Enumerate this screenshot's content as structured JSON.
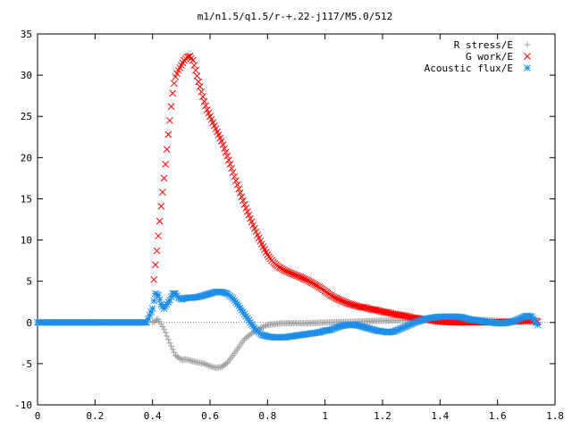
{
  "chart_data": {
    "type": "scatter",
    "title": "m1/n1.5/q1.5/r-+.22-j117/M5.0/512",
    "xlabel": "",
    "ylabel": "",
    "xlim": [
      0,
      1.8
    ],
    "ylim": [
      -10,
      35
    ],
    "x_ticks": [
      "0",
      "0.2",
      "0.4",
      "0.6",
      "0.8",
      "1",
      "1.2",
      "1.4",
      "1.6",
      "1.8"
    ],
    "y_ticks": [
      "-10",
      "-5",
      "0",
      "5",
      "10",
      "15",
      "20",
      "25",
      "30",
      "35"
    ],
    "legend_position": "top-right",
    "grid": false,
    "series": [
      {
        "name": "R stress/E",
        "marker": "plus",
        "color": "#a0a0a0",
        "points": [
          [
            0.4,
            0.0
          ],
          [
            0.42,
            0.4
          ],
          [
            0.44,
            -0.8
          ],
          [
            0.46,
            -2.5
          ],
          [
            0.48,
            -4.0
          ],
          [
            0.5,
            -4.5
          ],
          [
            0.52,
            -4.5
          ],
          [
            0.55,
            -4.8
          ],
          [
            0.58,
            -5.0
          ],
          [
            0.6,
            -5.3
          ],
          [
            0.62,
            -5.5
          ],
          [
            0.64,
            -5.4
          ],
          [
            0.66,
            -4.9
          ],
          [
            0.68,
            -4.0
          ],
          [
            0.7,
            -3.0
          ],
          [
            0.72,
            -2.0
          ],
          [
            0.75,
            -1.2
          ],
          [
            0.78,
            -0.6
          ],
          [
            0.8,
            -0.3
          ],
          [
            0.85,
            -0.1
          ],
          [
            0.9,
            -0.1
          ],
          [
            0.95,
            -0.1
          ],
          [
            1.0,
            0.0
          ],
          [
            1.05,
            0.05
          ],
          [
            1.1,
            0.1
          ],
          [
            1.15,
            0.15
          ],
          [
            1.2,
            0.2
          ],
          [
            1.25,
            0.25
          ],
          [
            1.3,
            0.3
          ],
          [
            1.35,
            0.35
          ],
          [
            1.4,
            0.4
          ],
          [
            1.45,
            0.4
          ],
          [
            1.5,
            0.35
          ],
          [
            1.55,
            0.3
          ],
          [
            1.6,
            0.2
          ],
          [
            1.65,
            0.1
          ],
          [
            1.7,
            0.1
          ],
          [
            1.73,
            0.0
          ]
        ]
      },
      {
        "name": "G work/E",
        "marker": "cross",
        "color": "#ff0000",
        "points": [
          [
            0.405,
            5.2
          ],
          [
            0.41,
            7.0
          ],
          [
            0.415,
            8.7
          ],
          [
            0.42,
            10.5
          ],
          [
            0.425,
            12.3
          ],
          [
            0.43,
            14.1
          ],
          [
            0.435,
            15.8
          ],
          [
            0.44,
            17.5
          ],
          [
            0.445,
            19.2
          ],
          [
            0.45,
            21.0
          ],
          [
            0.455,
            22.8
          ],
          [
            0.46,
            24.5
          ],
          [
            0.465,
            26.2
          ],
          [
            0.47,
            27.8
          ],
          [
            0.475,
            29.0
          ],
          [
            0.48,
            29.8
          ],
          [
            0.49,
            30.6
          ],
          [
            0.5,
            31.2
          ],
          [
            0.51,
            31.8
          ],
          [
            0.52,
            32.2
          ],
          [
            0.53,
            32.3
          ],
          [
            0.54,
            31.8
          ],
          [
            0.55,
            30.6
          ],
          [
            0.56,
            29.2
          ],
          [
            0.57,
            28.0
          ],
          [
            0.58,
            26.8
          ],
          [
            0.59,
            25.8
          ],
          [
            0.6,
            25.0
          ],
          [
            0.62,
            23.5
          ],
          [
            0.64,
            22.0
          ],
          [
            0.66,
            20.2
          ],
          [
            0.68,
            18.2
          ],
          [
            0.7,
            16.2
          ],
          [
            0.72,
            14.3
          ],
          [
            0.74,
            12.6
          ],
          [
            0.76,
            11.0
          ],
          [
            0.78,
            9.5
          ],
          [
            0.8,
            8.2
          ],
          [
            0.82,
            7.3
          ],
          [
            0.84,
            6.7
          ],
          [
            0.86,
            6.3
          ],
          [
            0.88,
            6.0
          ],
          [
            0.9,
            5.7
          ],
          [
            0.92,
            5.4
          ],
          [
            0.94,
            5.1
          ],
          [
            0.96,
            4.7
          ],
          [
            0.98,
            4.3
          ],
          [
            1.0,
            3.8
          ],
          [
            1.02,
            3.3
          ],
          [
            1.04,
            2.9
          ],
          [
            1.06,
            2.6
          ],
          [
            1.08,
            2.3
          ],
          [
            1.1,
            2.1
          ],
          [
            1.12,
            1.9
          ],
          [
            1.14,
            1.8
          ],
          [
            1.16,
            1.6
          ],
          [
            1.18,
            1.5
          ],
          [
            1.2,
            1.3
          ],
          [
            1.22,
            1.2
          ],
          [
            1.24,
            1.0
          ],
          [
            1.26,
            0.9
          ],
          [
            1.28,
            0.8
          ],
          [
            1.3,
            0.6
          ],
          [
            1.32,
            0.5
          ],
          [
            1.34,
            0.4
          ],
          [
            1.36,
            0.3
          ],
          [
            1.38,
            0.2
          ],
          [
            1.4,
            0.1
          ],
          [
            1.45,
            0.0
          ],
          [
            1.5,
            0.0
          ],
          [
            1.55,
            0.0
          ],
          [
            1.6,
            0.05
          ],
          [
            1.65,
            0.1
          ],
          [
            1.7,
            0.2
          ],
          [
            1.73,
            0.2
          ],
          [
            1.74,
            0.1
          ]
        ]
      },
      {
        "name": "Acoustic flux/E",
        "marker": "star",
        "color": "#1e8ee8",
        "points": [
          [
            0.0,
            0.0
          ],
          [
            0.05,
            0.0
          ],
          [
            0.1,
            0.0
          ],
          [
            0.15,
            0.0
          ],
          [
            0.2,
            0.0
          ],
          [
            0.25,
            0.0
          ],
          [
            0.3,
            0.0
          ],
          [
            0.35,
            0.0
          ],
          [
            0.38,
            0.0
          ],
          [
            0.4,
            1.7
          ],
          [
            0.41,
            3.5
          ],
          [
            0.42,
            3.3
          ],
          [
            0.43,
            2.2
          ],
          [
            0.44,
            1.7
          ],
          [
            0.45,
            2.2
          ],
          [
            0.46,
            2.7
          ],
          [
            0.47,
            3.5
          ],
          [
            0.48,
            3.5
          ],
          [
            0.49,
            3.0
          ],
          [
            0.5,
            2.8
          ],
          [
            0.52,
            3.0
          ],
          [
            0.54,
            3.0
          ],
          [
            0.56,
            3.1
          ],
          [
            0.58,
            3.3
          ],
          [
            0.6,
            3.5
          ],
          [
            0.62,
            3.7
          ],
          [
            0.64,
            3.7
          ],
          [
            0.66,
            3.5
          ],
          [
            0.68,
            2.9
          ],
          [
            0.7,
            2.0
          ],
          [
            0.72,
            1.0
          ],
          [
            0.74,
            0.0
          ],
          [
            0.76,
            -0.9
          ],
          [
            0.78,
            -1.5
          ],
          [
            0.8,
            -1.7
          ],
          [
            0.82,
            -1.8
          ],
          [
            0.84,
            -1.8
          ],
          [
            0.86,
            -1.8
          ],
          [
            0.88,
            -1.7
          ],
          [
            0.9,
            -1.6
          ],
          [
            0.92,
            -1.5
          ],
          [
            0.94,
            -1.4
          ],
          [
            0.96,
            -1.3
          ],
          [
            0.98,
            -1.2
          ],
          [
            1.0,
            -1.0
          ],
          [
            1.02,
            -0.9
          ],
          [
            1.04,
            -0.6
          ],
          [
            1.06,
            -0.4
          ],
          [
            1.08,
            -0.3
          ],
          [
            1.1,
            -0.3
          ],
          [
            1.12,
            -0.4
          ],
          [
            1.14,
            -0.6
          ],
          [
            1.16,
            -0.8
          ],
          [
            1.18,
            -1.0
          ],
          [
            1.2,
            -1.1
          ],
          [
            1.22,
            -1.2
          ],
          [
            1.24,
            -1.1
          ],
          [
            1.26,
            -0.8
          ],
          [
            1.28,
            -0.5
          ],
          [
            1.3,
            -0.2
          ],
          [
            1.32,
            0.1
          ],
          [
            1.34,
            0.3
          ],
          [
            1.36,
            0.5
          ],
          [
            1.38,
            0.6
          ],
          [
            1.4,
            0.7
          ],
          [
            1.42,
            0.7
          ],
          [
            1.44,
            0.7
          ],
          [
            1.46,
            0.7
          ],
          [
            1.48,
            0.6
          ],
          [
            1.5,
            0.4
          ],
          [
            1.52,
            0.3
          ],
          [
            1.54,
            0.2
          ],
          [
            1.56,
            0.1
          ],
          [
            1.58,
            0.0
          ],
          [
            1.6,
            -0.1
          ],
          [
            1.62,
            -0.1
          ],
          [
            1.64,
            0.0
          ],
          [
            1.66,
            0.2
          ],
          [
            1.68,
            0.5
          ],
          [
            1.7,
            0.8
          ],
          [
            1.72,
            0.7
          ],
          [
            1.73,
            0.2
          ],
          [
            1.74,
            -0.3
          ]
        ]
      }
    ]
  }
}
